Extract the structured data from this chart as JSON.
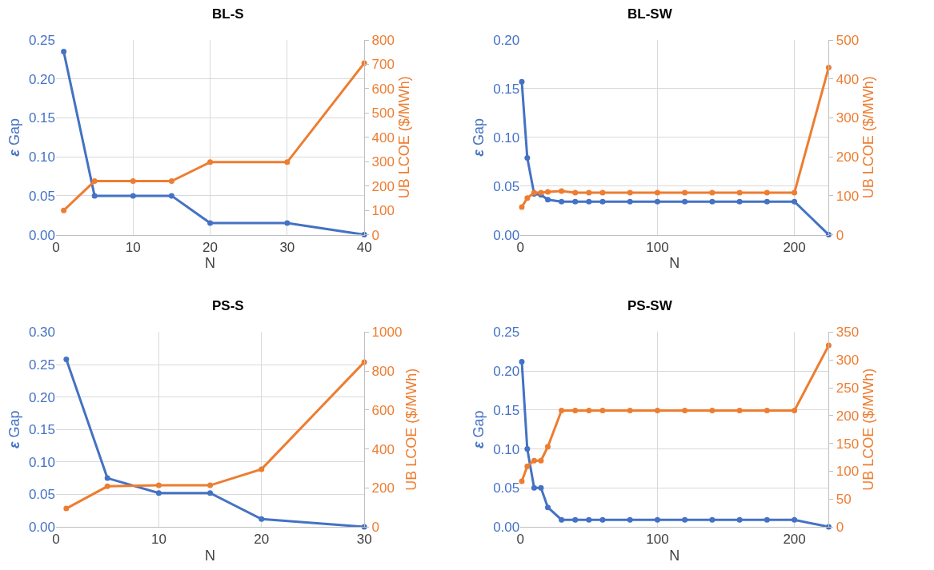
{
  "chart_data": [
    {
      "type": "line",
      "title": "BL-S",
      "xlabel": "N",
      "ylabel": "ε Gap",
      "y2label": "UB LCOE ($/MWh)",
      "x": [
        1,
        5,
        10,
        15,
        20,
        30,
        40
      ],
      "xlim": [
        0,
        40
      ],
      "xticks": [
        0,
        10,
        20,
        30,
        40
      ],
      "ylim": [
        0,
        0.25
      ],
      "yticks": [
        {
          "value": 0,
          "label": "0.00"
        },
        {
          "value": 0.05,
          "label": "0.05"
        },
        {
          "value": 0.1,
          "label": "0.10"
        },
        {
          "value": 0.15,
          "label": "0.15"
        },
        {
          "value": 0.2,
          "label": "0.20"
        },
        {
          "value": 0.25,
          "label": "0.25"
        }
      ],
      "y2lim": [
        0,
        800
      ],
      "y2ticks": [
        0,
        100,
        200,
        300,
        400,
        500,
        600,
        700,
        800
      ],
      "grid": true,
      "marker": "circle",
      "series": [
        {
          "color": "#4472c4",
          "values": [
            0.235,
            0.05,
            0.05,
            0.05,
            0.015,
            0.015,
            0
          ]
        },
        {
          "color": "#ed7d31",
          "axis": "y2",
          "values": [
            100,
            220,
            220,
            220,
            298,
            298,
            705
          ]
        }
      ]
    },
    {
      "type": "line",
      "title": "BL-SW",
      "xlabel": "N",
      "ylabel": "ε Gap",
      "y2label": "UB LCOE ($/MWh)",
      "x": [
        1,
        5,
        10,
        15,
        20,
        30,
        40,
        50,
        60,
        80,
        100,
        120,
        140,
        160,
        180,
        200,
        225
      ],
      "xlim": [
        0,
        225
      ],
      "xticks": [
        0,
        100,
        200
      ],
      "ylim": [
        0,
        0.2
      ],
      "yticks": [
        {
          "value": 0,
          "label": "0.00"
        },
        {
          "value": 0.05,
          "label": "0.05"
        },
        {
          "value": 0.1,
          "label": "0.10"
        },
        {
          "value": 0.15,
          "label": "0.15"
        },
        {
          "value": 0.2,
          "label": "0.20"
        }
      ],
      "y2lim": [
        0,
        500
      ],
      "y2ticks": [
        0,
        100,
        200,
        300,
        400,
        500
      ],
      "grid": true,
      "marker": "circle",
      "series": [
        {
          "color": "#4472c4",
          "values": [
            0.157,
            0.079,
            0.042,
            0.041,
            0.036,
            0.034,
            0.034,
            0.034,
            0.034,
            0.034,
            0.034,
            0.034,
            0.034,
            0.034,
            0.034,
            0.034,
            0
          ]
        },
        {
          "color": "#ed7d31",
          "axis": "y2",
          "values": [
            71,
            94,
            108,
            108,
            110,
            112,
            108,
            108,
            108,
            108,
            108,
            108,
            108,
            108,
            108,
            108,
            429
          ]
        }
      ]
    },
    {
      "type": "line",
      "title": "PS-S",
      "xlabel": "N",
      "ylabel": "ε Gap",
      "y2label": "UB LCOE ($/MWh)",
      "x": [
        1,
        5,
        10,
        15,
        20,
        30
      ],
      "xlim": [
        0,
        30
      ],
      "xticks": [
        0,
        10,
        20,
        30
      ],
      "ylim": [
        0,
        0.3
      ],
      "yticks": [
        {
          "value": 0,
          "label": "0.00"
        },
        {
          "value": 0.05,
          "label": "0.05"
        },
        {
          "value": 0.1,
          "label": "0.10"
        },
        {
          "value": 0.15,
          "label": "0.15"
        },
        {
          "value": 0.2,
          "label": "0.20"
        },
        {
          "value": 0.25,
          "label": "0.25"
        },
        {
          "value": 0.3,
          "label": "0.30"
        }
      ],
      "y2lim": [
        0,
        1000
      ],
      "y2ticks": [
        0,
        200,
        400,
        600,
        800,
        1000
      ],
      "grid": true,
      "marker": "circle",
      "series": [
        {
          "color": "#4472c4",
          "values": [
            0.258,
            0.075,
            0.052,
            0.052,
            0.012,
            0
          ]
        },
        {
          "color": "#ed7d31",
          "axis": "y2",
          "values": [
            94,
            208,
            213,
            213,
            296,
            846
          ]
        }
      ]
    },
    {
      "type": "line",
      "title": "PS-SW",
      "xlabel": "N",
      "ylabel": "ε Gap",
      "y2label": "UB LCOE ($/MWh)",
      "x": [
        1,
        5,
        10,
        15,
        20,
        30,
        40,
        50,
        60,
        80,
        100,
        120,
        140,
        160,
        180,
        200,
        225
      ],
      "xlim": [
        0,
        225
      ],
      "xticks": [
        0,
        100,
        200
      ],
      "ylim": [
        0,
        0.25
      ],
      "yticks": [
        {
          "value": 0,
          "label": "0.00"
        },
        {
          "value": 0.05,
          "label": "0.05"
        },
        {
          "value": 0.1,
          "label": "0.10"
        },
        {
          "value": 0.15,
          "label": "0.15"
        },
        {
          "value": 0.2,
          "label": "0.20"
        },
        {
          "value": 0.25,
          "label": "0.25"
        }
      ],
      "y2lim": [
        0,
        350
      ],
      "y2ticks": [
        0,
        50,
        100,
        150,
        200,
        250,
        300,
        350
      ],
      "grid": true,
      "marker": "circle",
      "series": [
        {
          "color": "#4472c4",
          "values": [
            0.212,
            0.1,
            0.05,
            0.05,
            0.025,
            0.009,
            0.009,
            0.009,
            0.009,
            0.009,
            0.009,
            0.009,
            0.009,
            0.009,
            0.009,
            0.009,
            0
          ]
        },
        {
          "color": "#ed7d31",
          "axis": "y2",
          "values": [
            82,
            109,
            119,
            119,
            144,
            209,
            209,
            209,
            209,
            209,
            209,
            209,
            209,
            209,
            209,
            209,
            326
          ]
        }
      ]
    }
  ]
}
